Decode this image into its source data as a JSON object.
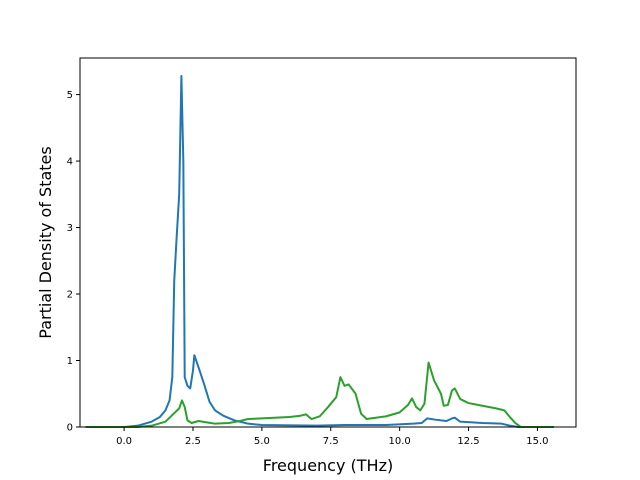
{
  "chart_data": {
    "type": "line",
    "xlabel": "Frequency (THz)",
    "ylabel": "Partial Density of States",
    "xlim": [
      -1.6,
      16.4
    ],
    "ylim": [
      0,
      5.55
    ],
    "xticks": [
      {
        "value": 0.0,
        "label": "0.0"
      },
      {
        "value": 2.5,
        "label": "2.5"
      },
      {
        "value": 5.0,
        "label": "5.0"
      },
      {
        "value": 7.5,
        "label": "7.5"
      },
      {
        "value": 10.0,
        "label": "10.0"
      },
      {
        "value": 12.5,
        "label": "12.5"
      },
      {
        "value": 15.0,
        "label": "15.0"
      }
    ],
    "yticks": [
      {
        "value": 0,
        "label": "0"
      },
      {
        "value": 1,
        "label": "1"
      },
      {
        "value": 2,
        "label": "2"
      },
      {
        "value": 3,
        "label": "3"
      },
      {
        "value": 4,
        "label": "4"
      },
      {
        "value": 5,
        "label": "5"
      }
    ],
    "grid": false,
    "legend": "none",
    "series": [
      {
        "color": "#1f77b4",
        "points": [
          [
            -1.4,
            0
          ],
          [
            0.0,
            0.0
          ],
          [
            0.5,
            0.02
          ],
          [
            1.0,
            0.08
          ],
          [
            1.3,
            0.15
          ],
          [
            1.5,
            0.25
          ],
          [
            1.65,
            0.4
          ],
          [
            1.75,
            0.75
          ],
          [
            1.82,
            2.2
          ],
          [
            1.9,
            2.8
          ],
          [
            2.0,
            3.5
          ],
          [
            2.08,
            5.28
          ],
          [
            2.15,
            4.0
          ],
          [
            2.2,
            0.75
          ],
          [
            2.3,
            0.62
          ],
          [
            2.4,
            0.58
          ],
          [
            2.5,
            0.85
          ],
          [
            2.55,
            1.08
          ],
          [
            2.7,
            0.9
          ],
          [
            2.9,
            0.65
          ],
          [
            3.1,
            0.38
          ],
          [
            3.3,
            0.25
          ],
          [
            3.6,
            0.17
          ],
          [
            4.0,
            0.1
          ],
          [
            4.5,
            0.05
          ],
          [
            5.0,
            0.03
          ],
          [
            7.0,
            0.02
          ],
          [
            8.0,
            0.03
          ],
          [
            9.5,
            0.03
          ],
          [
            10.5,
            0.05
          ],
          [
            10.8,
            0.06
          ],
          [
            11.0,
            0.13
          ],
          [
            11.3,
            0.11
          ],
          [
            11.7,
            0.09
          ],
          [
            11.9,
            0.13
          ],
          [
            12.0,
            0.14
          ],
          [
            12.2,
            0.08
          ],
          [
            13.0,
            0.06
          ],
          [
            13.7,
            0.05
          ],
          [
            14.0,
            0.02
          ],
          [
            14.3,
            0
          ],
          [
            15.6,
            0
          ]
        ]
      },
      {
        "color": "#2ca02c",
        "points": [
          [
            -1.4,
            0
          ],
          [
            0.5,
            0.0
          ],
          [
            1.0,
            0.02
          ],
          [
            1.5,
            0.08
          ],
          [
            1.8,
            0.2
          ],
          [
            2.0,
            0.28
          ],
          [
            2.1,
            0.4
          ],
          [
            2.2,
            0.3
          ],
          [
            2.3,
            0.1
          ],
          [
            2.45,
            0.06
          ],
          [
            2.7,
            0.09
          ],
          [
            3.0,
            0.07
          ],
          [
            3.3,
            0.05
          ],
          [
            3.8,
            0.06
          ],
          [
            4.2,
            0.09
          ],
          [
            4.5,
            0.12
          ],
          [
            5.0,
            0.13
          ],
          [
            6.0,
            0.15
          ],
          [
            6.4,
            0.17
          ],
          [
            6.6,
            0.19
          ],
          [
            6.8,
            0.12
          ],
          [
            7.1,
            0.16
          ],
          [
            7.4,
            0.3
          ],
          [
            7.7,
            0.45
          ],
          [
            7.85,
            0.75
          ],
          [
            8.0,
            0.62
          ],
          [
            8.15,
            0.64
          ],
          [
            8.4,
            0.5
          ],
          [
            8.6,
            0.2
          ],
          [
            8.8,
            0.12
          ],
          [
            9.5,
            0.16
          ],
          [
            10.0,
            0.22
          ],
          [
            10.3,
            0.33
          ],
          [
            10.45,
            0.43
          ],
          [
            10.6,
            0.3
          ],
          [
            10.75,
            0.25
          ],
          [
            10.9,
            0.35
          ],
          [
            11.05,
            0.97
          ],
          [
            11.25,
            0.7
          ],
          [
            11.5,
            0.5
          ],
          [
            11.6,
            0.32
          ],
          [
            11.75,
            0.33
          ],
          [
            11.9,
            0.55
          ],
          [
            12.0,
            0.58
          ],
          [
            12.2,
            0.42
          ],
          [
            12.5,
            0.36
          ],
          [
            13.0,
            0.32
          ],
          [
            13.5,
            0.28
          ],
          [
            13.8,
            0.25
          ],
          [
            14.0,
            0.15
          ],
          [
            14.2,
            0.06
          ],
          [
            14.4,
            0.0
          ],
          [
            15.6,
            0
          ]
        ]
      }
    ]
  }
}
